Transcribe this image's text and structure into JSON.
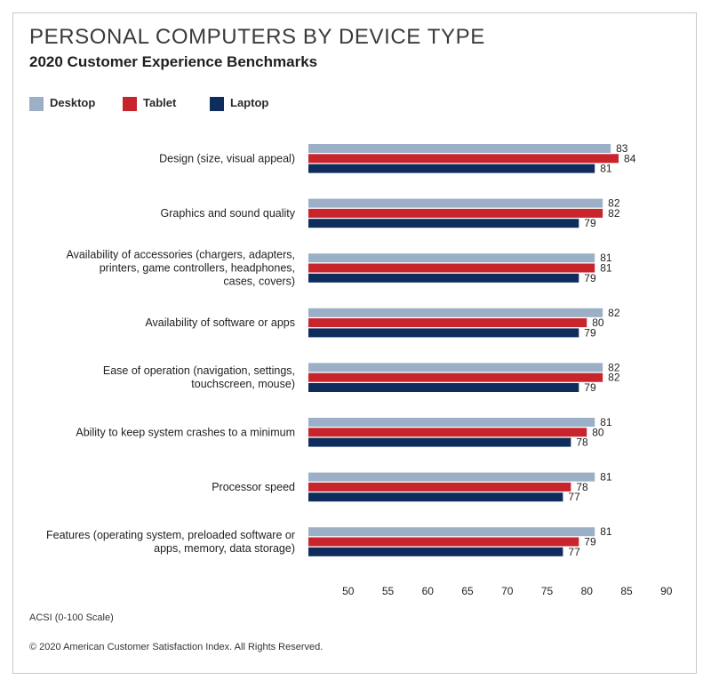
{
  "title": "PERSONAL COMPUTERS BY DEVICE TYPE",
  "subtitle": "2020 Customer Experience Benchmarks",
  "footer": {
    "scale_note": "ACSI (0-100 Scale)",
    "copyright": "© 2020 American Customer Satisfaction Index. All Rights Reserved."
  },
  "chart_data": {
    "type": "bar",
    "orientation": "horizontal",
    "title": "PERSONAL COMPUTERS BY DEVICE TYPE",
    "subtitle": "2020 Customer Experience Benchmarks",
    "xlabel": "ACSI (0-100 Scale)",
    "ylabel": "",
    "xlim": [
      45,
      90
    ],
    "xticks": [
      50,
      55,
      60,
      65,
      70,
      75,
      80,
      85,
      90
    ],
    "grid": false,
    "legend_position": "top-left",
    "categories": [
      [
        "Design (size, visual appeal)"
      ],
      [
        "Graphics and sound quality"
      ],
      [
        "Availability of accessories (chargers, adapters,",
        "printers, game controllers, headphones,",
        "cases, covers)"
      ],
      [
        "Availability of software or apps"
      ],
      [
        "Ease of operation (navigation, settings,",
        "touchscreen, mouse)"
      ],
      [
        "Ability to keep system crashes to a minimum"
      ],
      [
        "Processor speed"
      ],
      [
        "Features (operating system, preloaded software or",
        "apps, memory, data storage)"
      ]
    ],
    "series": [
      {
        "name": "Desktop",
        "color": "#9bb0c6",
        "values": [
          83,
          82,
          81,
          82,
          82,
          81,
          81,
          81
        ]
      },
      {
        "name": "Tablet",
        "color": "#c8242b",
        "values": [
          84,
          82,
          81,
          80,
          82,
          80,
          78,
          79
        ]
      },
      {
        "name": "Laptop",
        "color": "#0e2d5c",
        "values": [
          81,
          79,
          79,
          79,
          79,
          78,
          77,
          77
        ]
      }
    ]
  }
}
